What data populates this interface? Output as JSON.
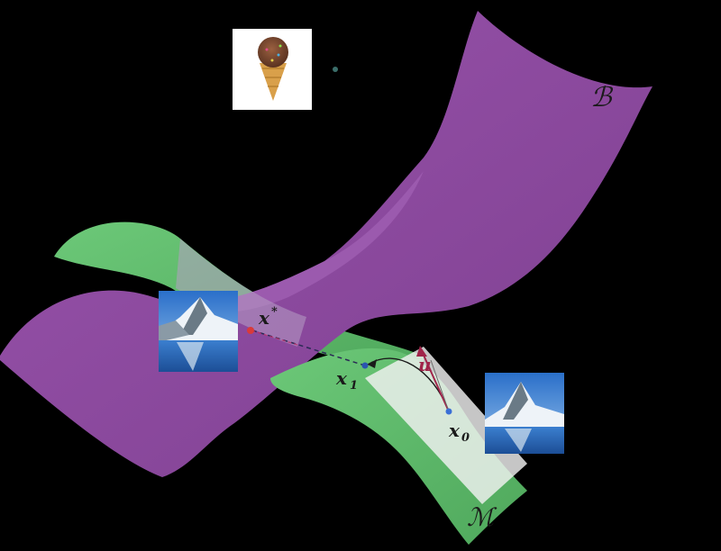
{
  "labels": {
    "manifold_b": "ℬ",
    "manifold_m": "ℳ",
    "x_star": "x",
    "x_star_sup": "*",
    "x1": "x",
    "x1_sub": "1",
    "x0": "x",
    "x0_sub": "0",
    "u": "u"
  },
  "colors": {
    "purple_surface": "#8b4a9c",
    "purple_surface_light": "#a35fb5",
    "green_surface": "#5fb86a",
    "green_surface_light": "#7dd08a",
    "background": "#000000",
    "vector_u": "#a0244a",
    "point_x0": "#3a6fd6",
    "point_x_star": "#d93a3a",
    "tangent_plane": "#f2f2f2"
  },
  "icons": {
    "ice_cream": "ice-cream-cone-image",
    "mountain_a": "matterhorn-photo",
    "mountain_b": "matterhorn-photo"
  }
}
